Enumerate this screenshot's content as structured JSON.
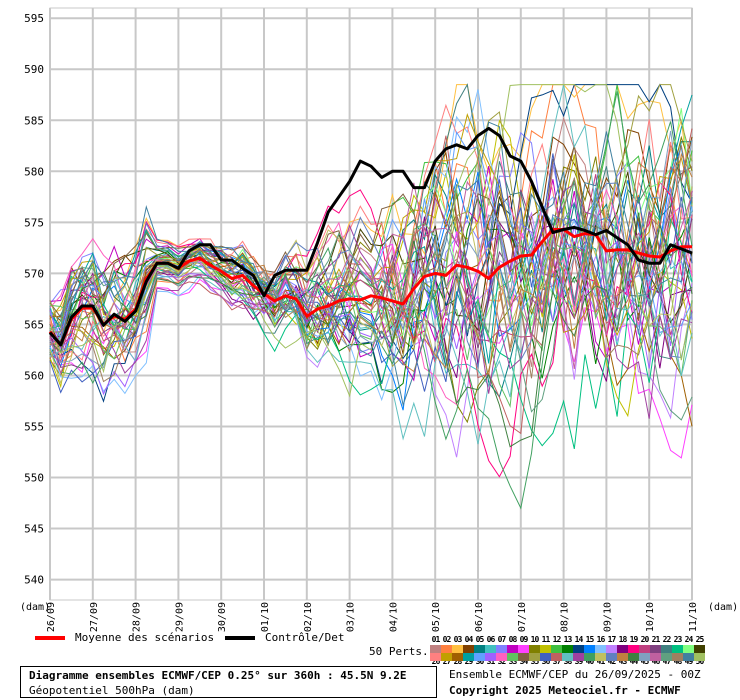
{
  "chart_data": {
    "type": "line",
    "title": "Diagramme ensembles ECMWF/CEP 0.25° sur 360h : 45.5N 9.2E",
    "subtitle": "Géopotentiel 500hPa (dam)",
    "ylabel_left": "(dam)",
    "ylabel_right": "(dam)",
    "ylim": [
      538,
      596
    ],
    "y_ticks": [
      "540",
      "545",
      "550",
      "555",
      "560",
      "565",
      "570",
      "575",
      "580",
      "585",
      "590",
      "595"
    ],
    "x_ticks": [
      "26/09",
      "27/09",
      "28/09",
      "29/09",
      "30/09",
      "01/10",
      "02/10",
      "03/10",
      "04/10",
      "05/10",
      "06/10",
      "07/10",
      "08/10",
      "09/10",
      "10/10",
      "11/10"
    ],
    "x_days_range": [
      0,
      15
    ],
    "grid": true,
    "mean_series": {
      "name": "Moyenne des scénarios",
      "color": "#ff0000",
      "points": [
        [
          0,
          564.3
        ],
        [
          0.25,
          563.0
        ],
        [
          0.5,
          565.5
        ],
        [
          0.75,
          566.6
        ],
        [
          1,
          566.6
        ],
        [
          1.25,
          565.0
        ],
        [
          1.5,
          565.8
        ],
        [
          1.75,
          565.5
        ],
        [
          2,
          566.5
        ],
        [
          2.25,
          569.5
        ],
        [
          2.5,
          571.0
        ],
        [
          2.75,
          571.0
        ],
        [
          3,
          570.5
        ],
        [
          3.25,
          571.2
        ],
        [
          3.5,
          571.5
        ],
        [
          3.75,
          570.8
        ],
        [
          4,
          570.2
        ],
        [
          4.25,
          569.5
        ],
        [
          4.5,
          569.8
        ],
        [
          4.75,
          568.8
        ],
        [
          5,
          568.0
        ],
        [
          5.25,
          567.3
        ],
        [
          5.5,
          567.8
        ],
        [
          5.75,
          567.5
        ],
        [
          6,
          565.8
        ],
        [
          6.25,
          566.5
        ],
        [
          6.5,
          566.8
        ],
        [
          6.75,
          567.3
        ],
        [
          7,
          567.5
        ],
        [
          7.25,
          567.4
        ],
        [
          7.5,
          567.8
        ],
        [
          7.75,
          567.6
        ],
        [
          8,
          567.3
        ],
        [
          8.25,
          567.0
        ],
        [
          8.5,
          568.5
        ],
        [
          8.75,
          569.7
        ],
        [
          9,
          570.0
        ],
        [
          9.25,
          569.8
        ],
        [
          9.5,
          570.8
        ],
        [
          9.75,
          570.6
        ],
        [
          10,
          570.2
        ],
        [
          10.25,
          569.5
        ],
        [
          10.5,
          570.6
        ],
        [
          10.75,
          571.2
        ],
        [
          11,
          571.7
        ],
        [
          11.25,
          571.8
        ],
        [
          11.5,
          573.1
        ],
        [
          11.75,
          574.3
        ],
        [
          12,
          574.3
        ],
        [
          12.25,
          573.6
        ],
        [
          12.5,
          573.9
        ],
        [
          12.75,
          573.8
        ],
        [
          13,
          572.2
        ],
        [
          13.25,
          572.3
        ],
        [
          13.5,
          572.3
        ],
        [
          13.75,
          572.0
        ],
        [
          14,
          571.7
        ],
        [
          14.25,
          571.6
        ],
        [
          14.5,
          572.2
        ],
        [
          14.75,
          572.6
        ],
        [
          15,
          572.6
        ]
      ]
    },
    "control_series": {
      "name": "Contrôle/Det",
      "color": "#000000",
      "points": [
        [
          0,
          564.2
        ],
        [
          0.25,
          563.0
        ],
        [
          0.5,
          565.7
        ],
        [
          0.75,
          566.8
        ],
        [
          1,
          566.8
        ],
        [
          1.25,
          564.9
        ],
        [
          1.5,
          566.0
        ],
        [
          1.75,
          565.3
        ],
        [
          2,
          566.3
        ],
        [
          2.25,
          569.2
        ],
        [
          2.5,
          571.0
        ],
        [
          2.75,
          571.0
        ],
        [
          3,
          570.5
        ],
        [
          3.25,
          572.2
        ],
        [
          3.5,
          572.8
        ],
        [
          3.75,
          572.8
        ],
        [
          4,
          571.3
        ],
        [
          4.25,
          571.3
        ],
        [
          4.5,
          570.5
        ],
        [
          4.75,
          569.8
        ],
        [
          5,
          567.8
        ],
        [
          5.25,
          569.8
        ],
        [
          5.5,
          570.3
        ],
        [
          5.75,
          570.3
        ],
        [
          6,
          570.3
        ],
        [
          6.25,
          573.0
        ],
        [
          6.5,
          576.0
        ],
        [
          6.75,
          577.5
        ],
        [
          7,
          579.0
        ],
        [
          7.25,
          581.0
        ],
        [
          7.5,
          580.5
        ],
        [
          7.75,
          579.4
        ],
        [
          8,
          580.0
        ],
        [
          8.25,
          580.0
        ],
        [
          8.5,
          578.4
        ],
        [
          8.75,
          578.4
        ],
        [
          9,
          581.0
        ],
        [
          9.25,
          582.2
        ],
        [
          9.5,
          582.6
        ],
        [
          9.75,
          582.2
        ],
        [
          10,
          583.5
        ],
        [
          10.25,
          584.2
        ],
        [
          10.5,
          583.5
        ],
        [
          10.75,
          581.5
        ],
        [
          11,
          581.0
        ],
        [
          11.25,
          579.0
        ],
        [
          11.5,
          576.5
        ],
        [
          11.75,
          574.0
        ],
        [
          12,
          574.3
        ],
        [
          12.25,
          574.5
        ],
        [
          12.5,
          574.2
        ],
        [
          12.75,
          573.8
        ],
        [
          13,
          574.2
        ],
        [
          13.25,
          573.5
        ],
        [
          13.5,
          572.8
        ],
        [
          13.75,
          571.3
        ],
        [
          14,
          571.0
        ],
        [
          14.25,
          571.0
        ],
        [
          14.5,
          572.8
        ],
        [
          15,
          572.0
        ]
      ]
    },
    "perturbations": {
      "label": "50 Perts.",
      "count": 50,
      "codes_row1": [
        "01",
        "02",
        "03",
        "04",
        "05",
        "06",
        "07",
        "08",
        "09",
        "10",
        "11",
        "12",
        "13",
        "14",
        "15",
        "16",
        "17",
        "18",
        "19",
        "20",
        "21",
        "22",
        "23",
        "24",
        "25"
      ],
      "codes_row2": [
        "26",
        "27",
        "28",
        "29",
        "30",
        "31",
        "32",
        "33",
        "34",
        "35",
        "36",
        "37",
        "38",
        "39",
        "40",
        "41",
        "42",
        "43",
        "44",
        "45",
        "46",
        "47",
        "48",
        "49",
        "50"
      ],
      "colors": [
        "#c08080",
        "#ff8040",
        "#ffc040",
        "#804000",
        "#008080",
        "#40c0c0",
        "#8080ff",
        "#c000c0",
        "#ff40ff",
        "#808000",
        "#c0c000",
        "#40c040",
        "#008000",
        "#004080",
        "#0080ff",
        "#80c0ff",
        "#c080ff",
        "#800080",
        "#ff0080",
        "#c04080",
        "#804080",
        "#408080",
        "#00c080",
        "#80ff80",
        "#404000",
        "#ff8080",
        "#c0a000",
        "#a06000",
        "#00a0a0",
        "#60a0ff",
        "#a060ff",
        "#ff60c0",
        "#60c060",
        "#806040",
        "#a0a040",
        "#4060c0",
        "#c06060",
        "#60c0c0",
        "#a040a0",
        "#40a060",
        "#c0c060",
        "#6080c0",
        "#c08040",
        "#408040",
        "#80a0c0",
        "#c060a0",
        "#60a080",
        "#a08060",
        "#4080a0",
        "#a0c060"
      ]
    },
    "run_info": "Ensemble ECMWF/CEP du 26/09/2025 - 00Z",
    "copyright": "Copyright 2025 Meteociel.fr - ECMWF"
  }
}
